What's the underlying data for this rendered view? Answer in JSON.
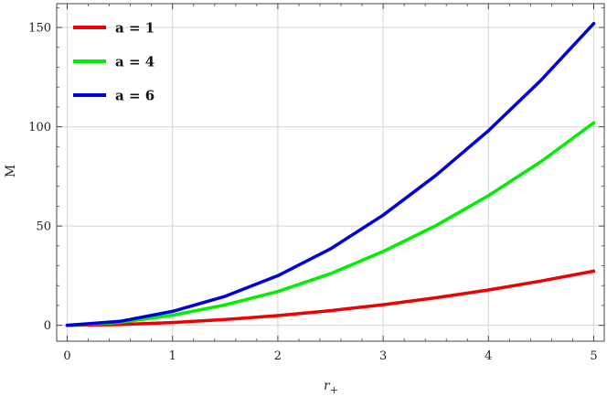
{
  "chart_data": {
    "type": "line",
    "title": "",
    "xlabel": "r",
    "xlabel_subscript": "+",
    "ylabel": "M",
    "xlim": [
      -0.1,
      5.1
    ],
    "ylim": [
      -8,
      162
    ],
    "xticks": [
      0,
      1,
      2,
      3,
      4,
      5
    ],
    "yticks": [
      0,
      50,
      100,
      150
    ],
    "grid": true,
    "legend_position": "top-left",
    "series": [
      {
        "name": "a = 1",
        "color": "#ee0000",
        "x": [
          0,
          0.5,
          1,
          1.5,
          2,
          2.5,
          3,
          3.5,
          4,
          4.5,
          5
        ],
        "y": [
          0,
          0.4,
          1.4,
          2.9,
          4.9,
          7.4,
          10.4,
          13.9,
          17.8,
          22.3,
          27.3
        ]
      },
      {
        "name": "a = 4",
        "color": "#00ee00",
        "x": [
          0,
          0.5,
          1,
          1.5,
          2,
          2.5,
          3,
          3.5,
          4,
          4.5,
          5
        ],
        "y": [
          0,
          1.5,
          5.1,
          10.3,
          17.0,
          26.0,
          37.2,
          50.2,
          65.3,
          82.5,
          102.0
        ]
      },
      {
        "name": "a = 6",
        "color": "#0000dd",
        "x": [
          0,
          0.5,
          1,
          1.5,
          2,
          2.5,
          3,
          3.5,
          4,
          4.5,
          5
        ],
        "y": [
          0,
          2.0,
          7.0,
          14.6,
          25.0,
          38.5,
          55.5,
          75.5,
          98.0,
          123.5,
          152.0
        ]
      }
    ]
  }
}
